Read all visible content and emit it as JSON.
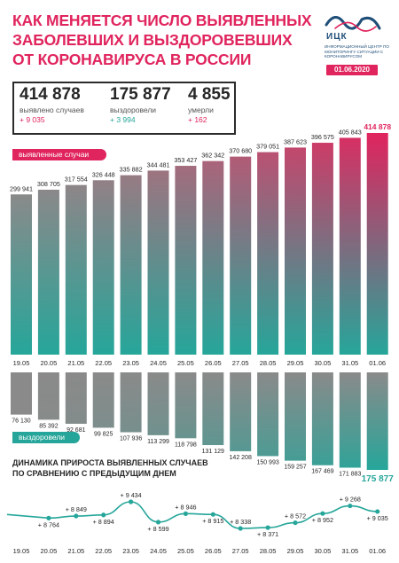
{
  "header": {
    "title_lines": [
      "КАК МЕНЯЕТСЯ ЧИСЛО ВЫЯВЛЕННЫХ",
      "ЗАБОЛЕВШИХ И ВЫЗДОРОВЕВШИХ",
      "ОТ КОРОНАВИРУСА В РОССИИ"
    ],
    "logo_name": "ИЦК",
    "logo_desc": "Информационный центр по мониторингу ситуации с коронавирусом",
    "date": "01.06.2020"
  },
  "summary": {
    "cases": {
      "value": "414 878",
      "label": "выявлено случаев",
      "delta": "+ 9 035"
    },
    "recovered": {
      "value": "175 877",
      "label": "выздоровели",
      "delta": "+ 3 994"
    },
    "deaths": {
      "value": "4 855",
      "label": "умерли",
      "delta": "+ 162"
    }
  },
  "labels": {
    "cases_pill": "выявленные случаи",
    "recovered_pill": "выздоровели",
    "dynamics_title_1": "ДИНАМИКА ПРИРОСТА ВЫЯВЛЕННЫХ СЛУЧАЕВ",
    "dynamics_title_2": "ПО СРАВНЕНИЮ С ПРЕДЫДУЩИМ ДНЕМ"
  },
  "colors": {
    "accent": "#e0245e",
    "teal": "#26a69a",
    "gray": "#8a8a8a",
    "dark": "#262626"
  },
  "chart_data": [
    {
      "type": "bar",
      "categories": [
        "19.05",
        "20.05",
        "21.05",
        "22.05",
        "23.05",
        "24.05",
        "25.05",
        "26.05",
        "27.05",
        "28.05",
        "29.05",
        "30.05",
        "31.05",
        "01.06"
      ],
      "series": [
        {
          "name": "выявленные случаи",
          "values": [
            299941,
            308705,
            317554,
            326448,
            335882,
            344481,
            353427,
            362342,
            370680,
            379051,
            387623,
            396575,
            405843,
            414878
          ]
        }
      ],
      "labels": [
        "299 941",
        "308 705",
        "317 554",
        "326 448",
        "335 882",
        "344 481",
        "353 427",
        "362 342",
        "370 680",
        "379 051",
        "387 623",
        "396 575",
        "405 843",
        "414 878"
      ],
      "ylim": [
        0,
        414878
      ]
    },
    {
      "type": "bar",
      "categories": [
        "19.05",
        "20.05",
        "21.05",
        "22.05",
        "23.05",
        "24.05",
        "25.05",
        "26.05",
        "27.05",
        "28.05",
        "29.05",
        "30.05",
        "31.05",
        "01.06"
      ],
      "series": [
        {
          "name": "выздоровели",
          "values": [
            76130,
            85392,
            92681,
            99825,
            107936,
            113299,
            118798,
            131129,
            142208,
            150993,
            159257,
            167469,
            171883,
            175877
          ]
        }
      ],
      "labels": [
        "76 130",
        "85 392",
        "92 681",
        "99 825",
        "107 936",
        "113 299",
        "118 798",
        "131 129",
        "142 208",
        "150 993",
        "159 257",
        "167 469",
        "171 883",
        "175 877"
      ],
      "ylim": [
        0,
        175877
      ]
    },
    {
      "type": "line",
      "title": "ДИНАМИКА ПРИРОСТА ВЫЯВЛЕННЫХ СЛУЧАЕВ ПО СРАВНЕНИЮ С ПРЕДЫДУЩИМ ДНЕМ",
      "x": [
        "19.05",
        "20.05",
        "21.05",
        "22.05",
        "23.05",
        "24.05",
        "25.05",
        "26.05",
        "27.05",
        "28.05",
        "29.05",
        "30.05",
        "31.05",
        "01.06"
      ],
      "values": [
        null,
        8764,
        8849,
        8894,
        9434,
        8599,
        8946,
        8915,
        8338,
        8371,
        8572,
        8952,
        9268,
        9035
      ],
      "labels": [
        "",
        "+ 8 764",
        "+ 8 849",
        "+ 8 894",
        "+ 9 434",
        "+ 8 599",
        "+ 8 946",
        "+ 8 915",
        "+ 8 338",
        "+ 8 371",
        "+ 8 572",
        "+ 8 952",
        "+ 9 268",
        "+ 9 035"
      ]
    }
  ]
}
